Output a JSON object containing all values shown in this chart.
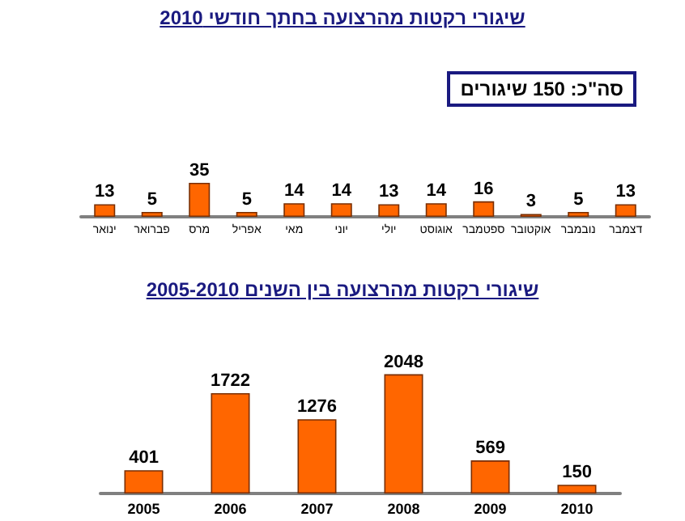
{
  "chart_data": [
    {
      "type": "bar",
      "title": "שיגורי רקטות מהרצועה בחתך חודשי 2010",
      "categories": [
        "ינואר",
        "פברואר",
        "מרס",
        "אפריל",
        "מאי",
        "יוני",
        "יולי",
        "אוגוסט",
        "ספטמבר",
        "אוקטובר",
        "נובמבר",
        "דצמבר"
      ],
      "values": [
        13,
        5,
        35,
        5,
        14,
        14,
        13,
        14,
        16,
        3,
        5,
        13
      ],
      "color": "#ff6600",
      "data_labels": true,
      "annotations": [
        "סה\"כ: 150 שיגורים"
      ]
    },
    {
      "type": "bar",
      "title": "שיגורי רקטות מהרצועה בין השנים 2005-2010",
      "categories": [
        "2005",
        "2006",
        "2007",
        "2008",
        "2009",
        "2010"
      ],
      "values": [
        401,
        1722,
        1276,
        2048,
        569,
        150
      ],
      "color": "#ff6600",
      "data_labels": true
    }
  ]
}
